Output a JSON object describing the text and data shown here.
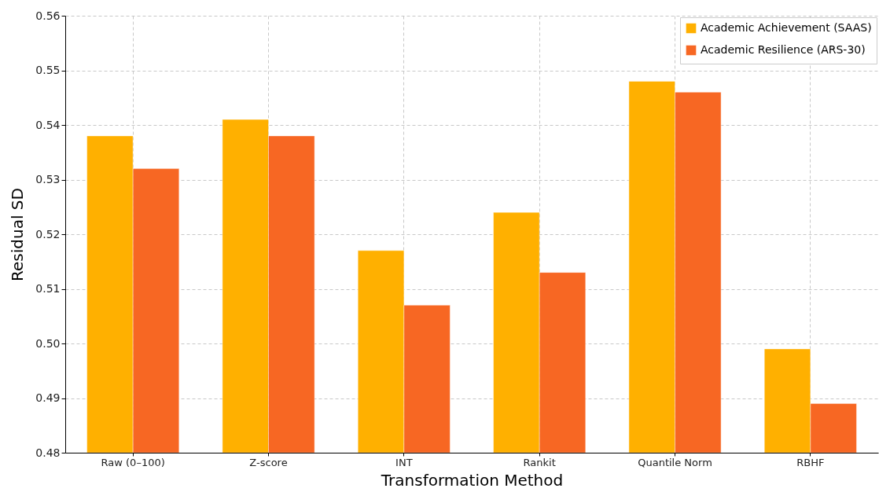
{
  "chart_data": {
    "type": "bar",
    "xlabel": "Transformation Method",
    "ylabel": "Residual SD",
    "categories": [
      "Raw (0–100)",
      "Z-score",
      "INT",
      "Rankit",
      "Quantile Norm",
      "RBHF"
    ],
    "series": [
      {
        "name": "Academic Achievement (SAAS)",
        "color": "#ffb000",
        "values": [
          0.538,
          0.541,
          0.517,
          0.524,
          0.548,
          0.499
        ]
      },
      {
        "name": "Academic Resilience (ARS-30)",
        "color": "#f76723",
        "values": [
          0.532,
          0.538,
          0.507,
          0.513,
          0.546,
          0.489
        ]
      }
    ],
    "ylim": [
      0.48,
      0.56
    ],
    "yticks": [
      0.48,
      0.49,
      {
        "value": 0.5,
        "label": "0.50"
      },
      0.51,
      0.52,
      0.53,
      0.54,
      0.55,
      0.56
    ],
    "grid": true,
    "legend": "top right"
  }
}
